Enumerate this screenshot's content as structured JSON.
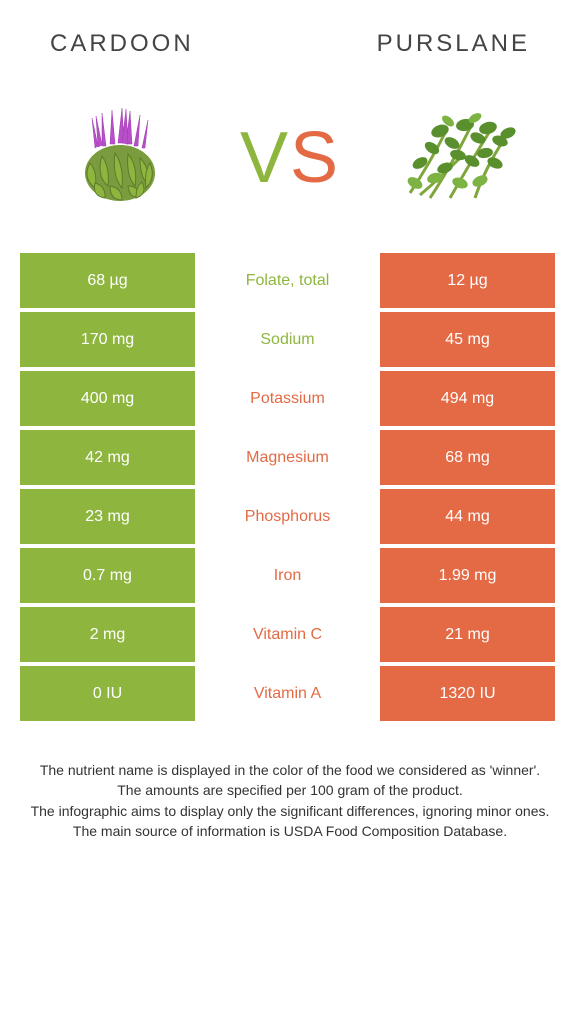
{
  "header": {
    "left_title": "Cardoon",
    "right_title": "Purslane",
    "vs_v": "V",
    "vs_s": "S"
  },
  "colors": {
    "left": "#8eb63f",
    "right": "#e46a45",
    "background": "#ffffff",
    "text": "#333333"
  },
  "rows": [
    {
      "left": "68 µg",
      "label": "Folate, total",
      "right": "12 µg",
      "winner": "left"
    },
    {
      "left": "170 mg",
      "label": "Sodium",
      "right": "45 mg",
      "winner": "left"
    },
    {
      "left": "400 mg",
      "label": "Potassium",
      "right": "494 mg",
      "winner": "right"
    },
    {
      "left": "42 mg",
      "label": "Magnesium",
      "right": "68 mg",
      "winner": "right"
    },
    {
      "left": "23 mg",
      "label": "Phosphorus",
      "right": "44 mg",
      "winner": "right"
    },
    {
      "left": "0.7 mg",
      "label": "Iron",
      "right": "1.99 mg",
      "winner": "right"
    },
    {
      "left": "2 mg",
      "label": "Vitamin C",
      "right": "21 mg",
      "winner": "right"
    },
    {
      "left": "0 IU",
      "label": "Vitamin A",
      "right": "1320 IU",
      "winner": "right"
    }
  ],
  "footer": {
    "line1": "The nutrient name is displayed in the color of the food we considered as 'winner'.",
    "line2": "The amounts are specified per 100 gram of the product.",
    "line3": "The infographic aims to display only the significant differences, ignoring minor ones.",
    "line4": "The main source of information is USDA Food Composition Database."
  }
}
